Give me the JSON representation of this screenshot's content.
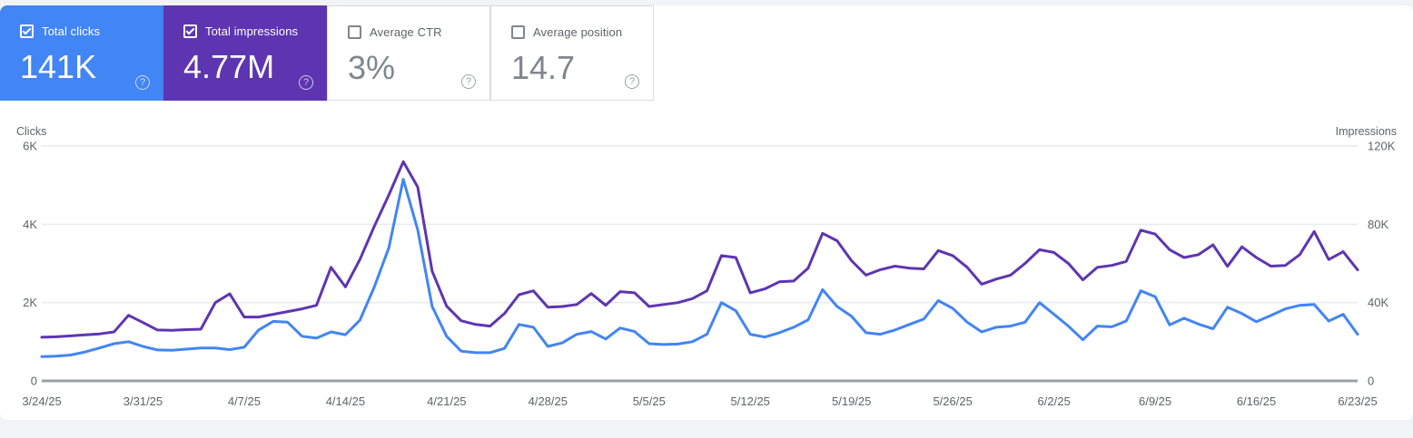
{
  "help_icon": "?",
  "cards": [
    {
      "id": "total-clicks",
      "label": "Total clicks",
      "value": "141K",
      "checked": true,
      "bg": "#4285f4",
      "text_color": "#ffffff"
    },
    {
      "id": "total-impressions",
      "label": "Total impressions",
      "value": "4.77M",
      "checked": true,
      "bg": "#5e35b1",
      "text_color": "#ffffff"
    },
    {
      "id": "average-ctr",
      "label": "Average CTR",
      "value": "3%",
      "checked": false,
      "bg": "#ffffff",
      "text_color": "#80868b"
    },
    {
      "id": "average-position",
      "label": "Average position",
      "value": "14.7",
      "checked": false,
      "bg": "#ffffff",
      "text_color": "#80868b"
    }
  ],
  "chart_data": {
    "type": "line",
    "grid": "horizontal",
    "legend": "none",
    "x_tick_labels": [
      "3/24/25",
      "3/31/25",
      "4/7/25",
      "4/14/25",
      "4/21/25",
      "4/28/25",
      "5/5/25",
      "5/12/25",
      "5/19/25",
      "5/26/25",
      "6/2/25",
      "6/9/25",
      "6/16/25",
      "6/23/25"
    ],
    "left_axis": {
      "title": "Clicks",
      "ticks": [
        "0",
        "2K",
        "4K",
        "6K"
      ],
      "max": 6000
    },
    "right_axis": {
      "title": "Impressions",
      "ticks": [
        "0",
        "40K",
        "80K",
        "120K"
      ],
      "max": 120000
    },
    "colors": {
      "grid": "#e8eaed",
      "zero_line": "#9aa0a6",
      "tick_text": "#5f6368"
    },
    "series": [
      {
        "name": "Total clicks",
        "axis": "left",
        "color": "#4285f4",
        "values": [
          620,
          630,
          660,
          740,
          840,
          950,
          1000,
          880,
          790,
          780,
          810,
          840,
          840,
          800,
          860,
          1300,
          1520,
          1500,
          1140,
          1090,
          1250,
          1180,
          1550,
          2400,
          3400,
          5150,
          3860,
          1900,
          1140,
          760,
          720,
          720,
          830,
          1440,
          1370,
          880,
          970,
          1190,
          1260,
          1070,
          1350,
          1260,
          950,
          930,
          940,
          1000,
          1190,
          2000,
          1790,
          1190,
          1120,
          1230,
          1370,
          1560,
          2330,
          1900,
          1650,
          1230,
          1190,
          1300,
          1440,
          1580,
          2050,
          1850,
          1500,
          1250,
          1370,
          1400,
          1500,
          2000,
          1700,
          1400,
          1050,
          1400,
          1380,
          1530,
          2300,
          2150,
          1430,
          1600,
          1450,
          1330,
          1880,
          1720,
          1510,
          1670,
          1840,
          1930,
          1950,
          1530,
          1700,
          1190
        ]
      },
      {
        "name": "Total impressions",
        "axis": "right",
        "color": "#5e35b1",
        "values": [
          22300,
          22500,
          23000,
          23500,
          24000,
          25000,
          33500,
          29800,
          26000,
          25800,
          26200,
          26400,
          40000,
          44500,
          32600,
          32600,
          34000,
          35400,
          36800,
          38600,
          58000,
          48000,
          62000,
          79000,
          95000,
          112000,
          99000,
          56000,
          38200,
          30700,
          28800,
          28000,
          34400,
          44000,
          46000,
          37600,
          38000,
          39000,
          44600,
          38600,
          45600,
          45000,
          38000,
          39000,
          40000,
          42000,
          46000,
          64000,
          63000,
          45000,
          47000,
          50600,
          51000,
          57600,
          75400,
          71600,
          61400,
          54000,
          56800,
          58600,
          57600,
          57200,
          66600,
          64000,
          58000,
          49400,
          52000,
          54000,
          60000,
          67000,
          65600,
          60000,
          51600,
          58000,
          59000,
          61000,
          77000,
          75000,
          67000,
          63000,
          64500,
          69500,
          58500,
          68500,
          63000,
          58600,
          59000,
          64500,
          76300,
          62000,
          66000,
          56700
        ]
      }
    ]
  }
}
